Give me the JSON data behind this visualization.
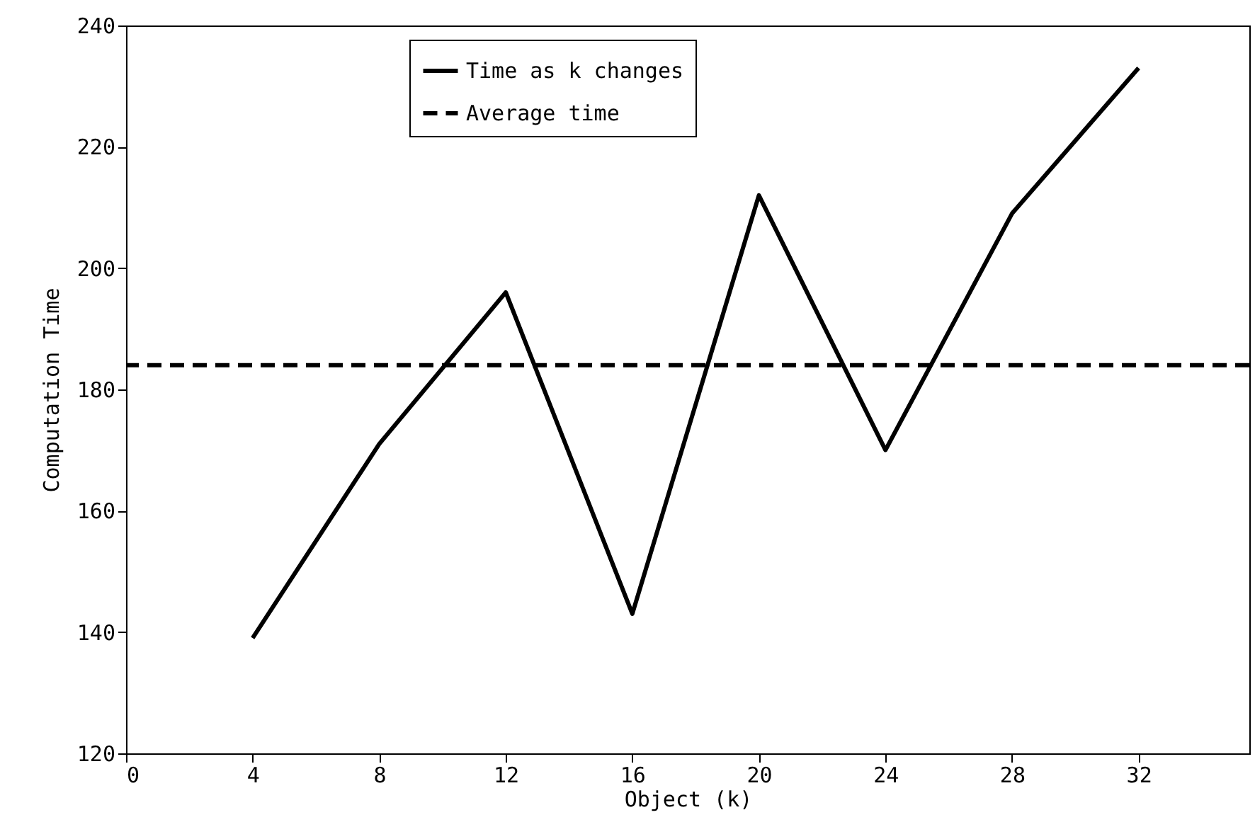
{
  "chart_data": {
    "type": "line",
    "xlabel": "Object (k)",
    "ylabel": "Computation Time",
    "x": [
      4,
      8,
      12,
      16,
      20,
      24,
      28,
      32
    ],
    "series": [
      {
        "name": "Time as k changes",
        "color": "#000000",
        "line_style": "solid",
        "values": [
          139,
          171,
          196,
          143,
          212,
          170,
          209,
          233
        ]
      }
    ],
    "ref_lines": [
      {
        "axis": "y",
        "value": 184,
        "label": "Average time",
        "color": "#000000",
        "line_style": "dashed"
      }
    ],
    "xlim": [
      0,
      35.5
    ],
    "xticks": [
      0,
      4,
      8,
      12,
      16,
      20,
      24,
      28,
      32
    ],
    "ylim": [
      120,
      240
    ],
    "yticks": [
      120,
      140,
      160,
      180,
      200,
      220,
      240
    ],
    "grid": false,
    "legend": "top"
  }
}
